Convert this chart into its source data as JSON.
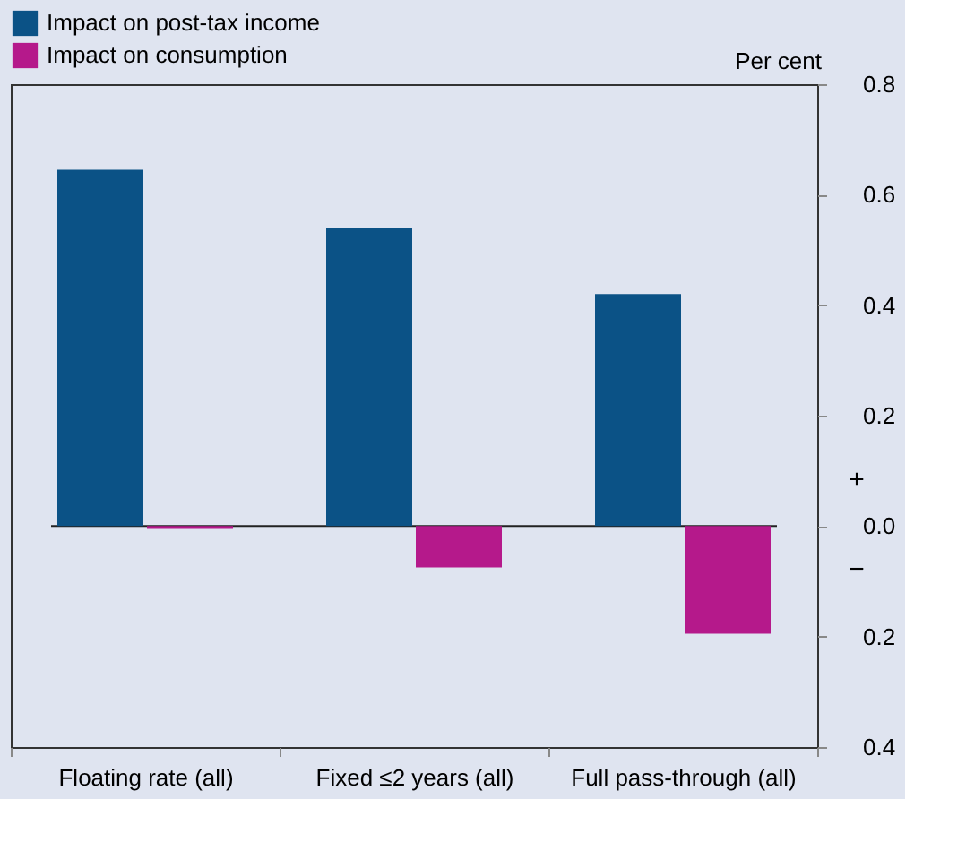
{
  "chart_data": {
    "type": "bar",
    "ylabel": "Per cent",
    "categories": [
      "Floating rate (all)",
      "Fixed ≤2 years (all)",
      "Full pass-through (all)"
    ],
    "series": [
      {
        "name": "Impact on post-tax income",
        "color": "#0b5286",
        "values": [
          0.645,
          0.54,
          0.42
        ]
      },
      {
        "name": "Impact on consumption",
        "color": "#b5198b",
        "values": [
          -0.005,
          -0.075,
          -0.195
        ]
      }
    ],
    "ylim": [
      -0.4,
      0.8
    ],
    "yticks": [
      {
        "value": -0.4,
        "label": "0.4"
      },
      {
        "value": -0.2,
        "label": "0.2"
      },
      {
        "value": 0,
        "label": "0.0"
      },
      0.2,
      0.4,
      0.6,
      0.8
    ],
    "ref_lines": [
      {
        "axis": "y",
        "value": 0,
        "color": "#222222"
      }
    ],
    "annotations": [
      "+",
      "−"
    ],
    "legend": "top left",
    "grid": false
  }
}
